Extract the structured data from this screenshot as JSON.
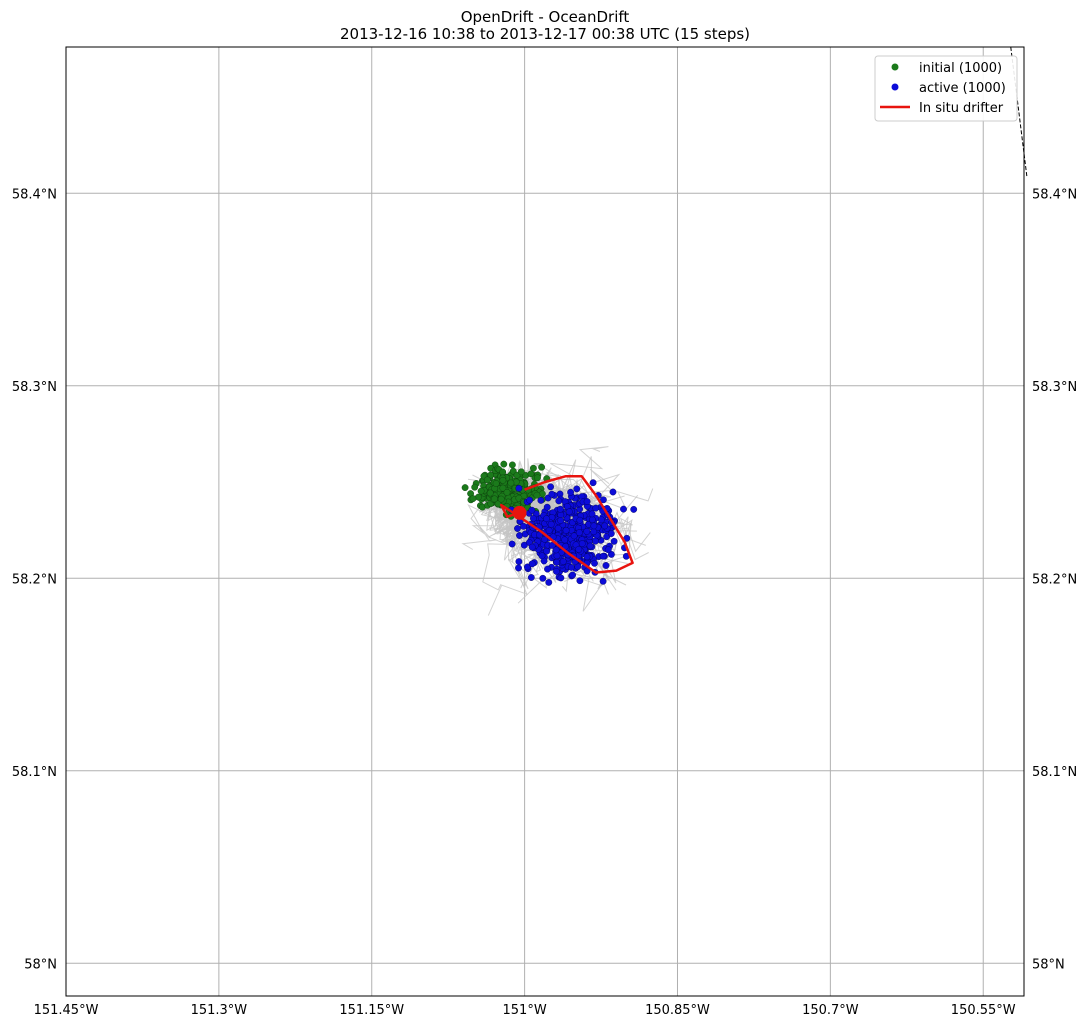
{
  "title": {
    "line1": "OpenDrift - OceanDrift",
    "line2": "2013-12-16 10:38 to 2013-12-17 00:38 UTC (15 steps)"
  },
  "legend": {
    "initial": "initial (1000)",
    "active": "active (1000)",
    "drifter": "In situ drifter"
  },
  "colors": {
    "initial": "#1b7a1b",
    "active": "#0c0cd8",
    "drifter": "#e8140f",
    "trajectory": "#c4c4c4",
    "grid": "#b0b0b0"
  },
  "axes": {
    "x_ticks": [
      "151.45°W",
      "151.3°W",
      "151.15°W",
      "151°W",
      "150.85°W",
      "150.7°W",
      "150.55°W"
    ],
    "x_tick_values": [
      -151.45,
      -151.3,
      -151.15,
      -151.0,
      -150.85,
      -150.7,
      -150.55
    ],
    "y_ticks": [
      "58°N",
      "58.1°N",
      "58.2°N",
      "58.3°N",
      "58.4°N"
    ],
    "y_tick_values": [
      58.0,
      58.1,
      58.2,
      58.3,
      58.4
    ],
    "xlim": [
      -151.45,
      -150.51
    ],
    "ylim": [
      57.983,
      58.476
    ]
  },
  "chart_data": {
    "type": "scatter",
    "initial_center": [
      -151.016,
      58.246
    ],
    "initial_spread": [
      0.021,
      0.007
    ],
    "active_center": [
      -150.955,
      58.223
    ],
    "active_spread": [
      0.037,
      0.017
    ],
    "drifter_track": [
      [
        -151.0,
        58.246
      ],
      [
        -150.98,
        58.25
      ],
      [
        -150.96,
        58.253
      ],
      [
        -150.944,
        58.253
      ],
      [
        -150.93,
        58.243
      ],
      [
        -150.916,
        58.231
      ],
      [
        -150.902,
        58.219
      ],
      [
        -150.894,
        58.208
      ],
      [
        -150.91,
        58.204
      ],
      [
        -150.93,
        58.203
      ],
      [
        -150.957,
        58.213
      ],
      [
        -150.983,
        58.224
      ],
      [
        -151.008,
        58.233
      ],
      [
        -151.023,
        58.238
      ],
      [
        -151.017,
        58.232
      ],
      [
        -151.005,
        58.234
      ]
    ],
    "drifter_end": [
      -151.005,
      58.234
    ],
    "coastline": [
      [
        -150.523,
        58.476
      ],
      [
        -150.507,
        58.408
      ]
    ]
  }
}
